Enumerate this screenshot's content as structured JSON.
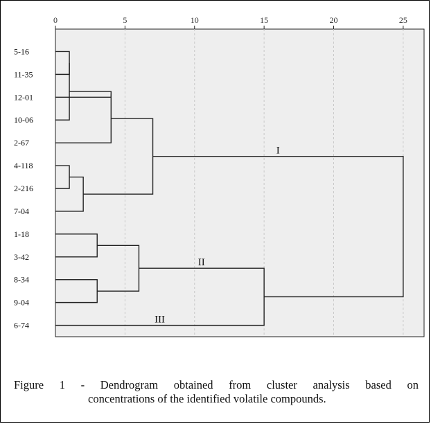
{
  "chart_data": {
    "type": "dendrogram",
    "x_ticks": [
      0,
      5,
      10,
      15,
      20,
      25
    ],
    "xlim": [
      0,
      26.5
    ],
    "grid_x": true,
    "leaves": [
      "5-16",
      "11-35",
      "12-01",
      "10-06",
      "2-67",
      "4-118",
      "2-216",
      "7-04",
      "1-18",
      "3-42",
      "8-34",
      "9-04",
      "6-74"
    ],
    "merges": [
      {
        "a": "5-16",
        "b": "11-35",
        "height": 1,
        "id": "m1"
      },
      {
        "a": "m1",
        "b": "10-06",
        "height": 1,
        "id": "m2"
      },
      {
        "a": "m2",
        "b": "12-01",
        "height": 4,
        "id": "m3"
      },
      {
        "a": "m3",
        "b": "2-67",
        "height": 4,
        "id": "m4"
      },
      {
        "a": "4-118",
        "b": "2-216",
        "height": 1,
        "id": "m5"
      },
      {
        "a": "m5",
        "b": "7-04",
        "height": 2,
        "id": "m6"
      },
      {
        "a": "m4",
        "b": "m6",
        "height": 7,
        "id": "m7"
      },
      {
        "a": "1-18",
        "b": "3-42",
        "height": 3,
        "id": "m8"
      },
      {
        "a": "8-34",
        "b": "9-04",
        "height": 3,
        "id": "m9"
      },
      {
        "a": "m8",
        "b": "m9",
        "height": 6,
        "id": "m10"
      },
      {
        "a": "m10",
        "b": "6-74",
        "height": 15,
        "id": "m11"
      },
      {
        "a": "m7",
        "b": "m11",
        "height": 25,
        "id": "m12"
      }
    ],
    "cluster_labels": [
      {
        "text": "I",
        "merge": "m7"
      },
      {
        "text": "II",
        "merge": "m10"
      },
      {
        "text": "III",
        "leaf": "6-74"
      }
    ]
  },
  "caption": {
    "prefix": "Figure 1 - Dendrogram obtained from cluster analysis based on",
    "line2": "concentrations of the identified volatile compounds."
  },
  "colors": {
    "plot_bg": "#eeeeee",
    "grid": "#c8c8c8",
    "line": "#222222"
  }
}
